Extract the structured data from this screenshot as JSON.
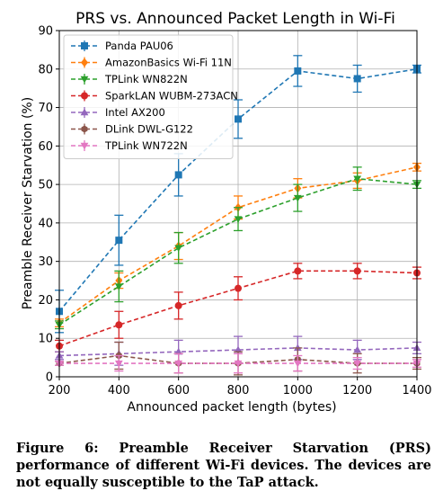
{
  "chart_data": {
    "type": "line",
    "title": "PRS vs. Announced Packet Length in Wi-Fi",
    "xlabel": "Announced packet length (bytes)",
    "ylabel": "Preamble Receiver Starvation (%)",
    "x": [
      200,
      400,
      600,
      800,
      1000,
      1200,
      1400
    ],
    "xlim": [
      200,
      1400
    ],
    "ylim": [
      0,
      90
    ],
    "xticks": [
      200,
      400,
      600,
      800,
      1000,
      1200,
      1400
    ],
    "yticks": [
      0,
      10,
      20,
      30,
      40,
      50,
      60,
      70,
      80,
      90
    ],
    "grid": true,
    "legend_position": "upper-left",
    "series": [
      {
        "name": "Panda PAU06",
        "color": "#1f77b4",
        "marker": "square",
        "values": [
          17,
          35.5,
          52.5,
          67,
          79.5,
          77.5,
          80
        ],
        "errors": [
          5.5,
          6.5,
          5.5,
          5,
          4,
          3.5,
          1
        ]
      },
      {
        "name": "AmazonBasics Wi-Fi 11N",
        "color": "#ff7f0e",
        "marker": "diamond",
        "values": [
          14,
          25,
          34,
          44,
          49,
          51,
          54.5
        ],
        "errors": [
          1,
          2,
          3.5,
          3,
          2.5,
          2,
          1
        ]
      },
      {
        "name": "TPLink WN822N",
        "color": "#2ca02c",
        "marker": "triangle-down",
        "values": [
          13.5,
          23.5,
          33.5,
          41,
          46.5,
          51.5,
          50
        ],
        "errors": [
          1,
          4,
          4,
          3,
          3.5,
          3,
          1
        ]
      },
      {
        "name": "SparkLAN WUBM-273ACN",
        "color": "#d62728",
        "marker": "circle",
        "values": [
          8,
          13.5,
          18.5,
          23,
          27.5,
          27.5,
          27
        ],
        "errors": [
          1.5,
          3.5,
          3.5,
          3,
          2,
          2,
          1.5
        ]
      },
      {
        "name": "Intel AX200",
        "color": "#9467bd",
        "marker": "triangle-up",
        "values": [
          5.5,
          6,
          6.5,
          7,
          7.5,
          7,
          7.5
        ],
        "errors": [
          1,
          3,
          3,
          3.5,
          3,
          2.5,
          1.5
        ]
      },
      {
        "name": "DLink DWL-G122",
        "color": "#8c564b",
        "marker": "hexagon",
        "values": [
          3.5,
          5.5,
          3.5,
          3.5,
          4.5,
          3.5,
          3.5
        ],
        "errors": [
          0.5,
          3.5,
          2.5,
          3,
          3,
          2.5,
          1.5
        ]
      },
      {
        "name": "TPLink WN722N",
        "color": "#e377c2",
        "marker": "triangle-down",
        "values": [
          3.5,
          3.5,
          3.5,
          3.5,
          3.5,
          3.5,
          3.5
        ],
        "errors": [
          0.5,
          2,
          2.5,
          2.5,
          2,
          1.5,
          1
        ]
      }
    ]
  },
  "caption": "Figure 6: Preamble Receiver Starvation (PRS) performance of different Wi-Fi devices. The devices are not equally susceptible to the TaP attack."
}
